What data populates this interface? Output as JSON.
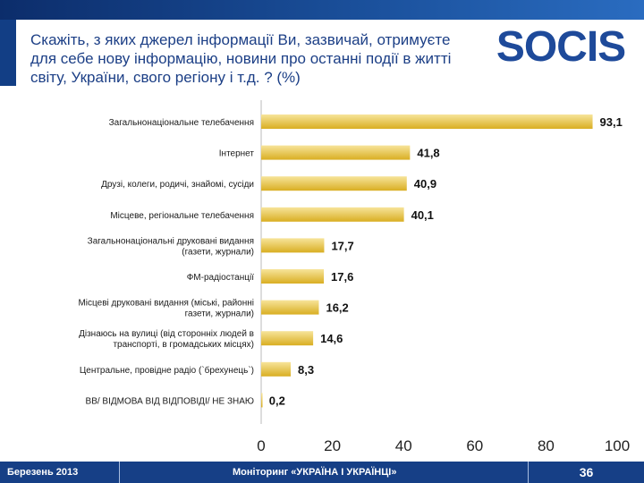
{
  "title": "Скажіть, з яких джерел інформації Ви, зазвичай, отримуєте для себе нову інформацію, новини про останні події в житті світу, України, свого регіону і т.д. ? (%)",
  "logo": {
    "text": "SOCIS",
    "color": "#1e4a9a"
  },
  "chart_data": {
    "type": "bar",
    "orientation": "horizontal",
    "categories": [
      "Загальнонаціональне телебачення",
      "Інтернет",
      "Друзі, колеги, родичі, знайомі, сусіди",
      "Місцеве, регіональне телебачення",
      "Загальнонаціональні друковані видання (газети, журнали)",
      "ФМ-радіостанції",
      "Місцеві друковані видання (міські, районні газети, журнали)",
      "Дізнаюсь на вулиці (від сторонніх людей  в транспорті, в громадських місцях)",
      "Центральне, провідне радіо (`брехунець`)",
      "ВВ/ ВІДМОВА ВІД ВІДПОВІДІ/ НЕ ЗНАЮ"
    ],
    "values": [
      93.1,
      41.8,
      40.9,
      40.1,
      17.7,
      17.6,
      16.2,
      14.6,
      8.3,
      0.2
    ],
    "labels": [
      "93,1",
      "41,8",
      "40,9",
      "40,1",
      "17,7",
      "17,6",
      "16,2",
      "14,6",
      "8,3",
      "0,2"
    ],
    "xlim": [
      0,
      100
    ],
    "xticks": [
      "0",
      "20",
      "40",
      "60",
      "80",
      "100"
    ],
    "bar_color": "#e6c238"
  },
  "footer": {
    "date": "Березень 2013",
    "project": "Моніторинг «УКРАЇНА І УКРАЇНЦІ»",
    "page": "36"
  }
}
